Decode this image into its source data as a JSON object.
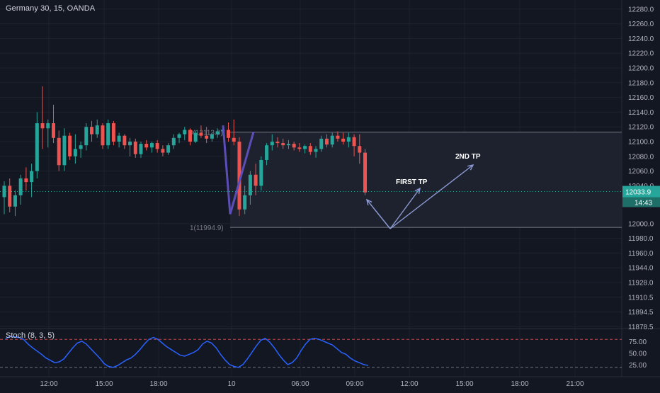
{
  "header": {
    "symbol_label": "Germany 30, 15, OANDA"
  },
  "colors": {
    "background": "#131722",
    "grid": "#1e222d",
    "up_candle": "#26a69a",
    "down_candle": "#ef5350",
    "axis_text": "#b2b5be",
    "price_line": "#26a69a",
    "box_fill": "#1f2330",
    "box_border": "#787b86",
    "fib_line": "#5d4db8",
    "arrow": "#8c9bd4",
    "stoch_line": "#2962ff",
    "stoch_band": "#ef5350"
  },
  "chart_data": {
    "type": "candlestick",
    "y_axis_ticks": [
      "12280.0",
      "12260.0",
      "12240.0",
      "12220.0",
      "12200.0",
      "12180.0",
      "12160.0",
      "12140.0",
      "12120.0",
      "12100.0",
      "12080.0",
      "12060.0",
      "12040.0",
      "12000.0",
      "11980.0",
      "11960.0",
      "11944.0",
      "11928.0",
      "11910.5",
      "11894.5",
      "11878.5"
    ],
    "x_axis_ticks": [
      "12:00",
      "15:00",
      "18:00",
      "10",
      "06:00",
      "09:00",
      "12:00",
      "15:00",
      "18:00",
      "21:00"
    ],
    "current_price": "12033.9",
    "countdown": "14:43",
    "fib_labels": {
      "top": "0(12113.0)",
      "bottom": "1(11994.9)"
    },
    "annotations": {
      "first_tp": "FIRST TP",
      "second_tp": "2ND TP"
    },
    "range_box": {
      "top": 12113.0,
      "bottom": 11994.9
    },
    "candles": [
      {
        "o": 12028,
        "h": 12046,
        "l": 12010,
        "c": 12040
      },
      {
        "o": 12040,
        "h": 12050,
        "l": 12012,
        "c": 12018
      },
      {
        "o": 12018,
        "h": 12035,
        "l": 12008,
        "c": 12030
      },
      {
        "o": 12030,
        "h": 12055,
        "l": 12020,
        "c": 12050
      },
      {
        "o": 12050,
        "h": 12065,
        "l": 12035,
        "c": 12045
      },
      {
        "o": 12045,
        "h": 12070,
        "l": 12028,
        "c": 12060
      },
      {
        "o": 12060,
        "h": 12140,
        "l": 12050,
        "c": 12125
      },
      {
        "o": 12125,
        "h": 12175,
        "l": 12090,
        "c": 12118
      },
      {
        "o": 12118,
        "h": 12130,
        "l": 12092,
        "c": 12125
      },
      {
        "o": 12125,
        "h": 12150,
        "l": 12098,
        "c": 12105
      },
      {
        "o": 12105,
        "h": 12115,
        "l": 12060,
        "c": 12068
      },
      {
        "o": 12068,
        "h": 12118,
        "l": 12060,
        "c": 12108
      },
      {
        "o": 12108,
        "h": 12112,
        "l": 12075,
        "c": 12080
      },
      {
        "o": 12080,
        "h": 12110,
        "l": 12070,
        "c": 12090
      },
      {
        "o": 12090,
        "h": 12100,
        "l": 12078,
        "c": 12095
      },
      {
        "o": 12095,
        "h": 12125,
        "l": 12088,
        "c": 12120
      },
      {
        "o": 12120,
        "h": 12128,
        "l": 12100,
        "c": 12110
      },
      {
        "o": 12110,
        "h": 12130,
        "l": 12105,
        "c": 12122
      },
      {
        "o": 12122,
        "h": 12125,
        "l": 12090,
        "c": 12095
      },
      {
        "o": 12095,
        "h": 12130,
        "l": 12090,
        "c": 12125
      },
      {
        "o": 12125,
        "h": 12128,
        "l": 12095,
        "c": 12100
      },
      {
        "o": 12100,
        "h": 12112,
        "l": 12092,
        "c": 12108
      },
      {
        "o": 12108,
        "h": 12110,
        "l": 12090,
        "c": 12095
      },
      {
        "o": 12095,
        "h": 12105,
        "l": 12080,
        "c": 12100
      },
      {
        "o": 12100,
        "h": 12104,
        "l": 12078,
        "c": 12083
      },
      {
        "o": 12083,
        "h": 12100,
        "l": 12078,
        "c": 12097
      },
      {
        "o": 12097,
        "h": 12102,
        "l": 12088,
        "c": 12092
      },
      {
        "o": 12092,
        "h": 12100,
        "l": 12085,
        "c": 12098
      },
      {
        "o": 12098,
        "h": 12102,
        "l": 12085,
        "c": 12090
      },
      {
        "o": 12090,
        "h": 12095,
        "l": 12080,
        "c": 12085
      },
      {
        "o": 12085,
        "h": 12098,
        "l": 12082,
        "c": 12095
      },
      {
        "o": 12095,
        "h": 12110,
        "l": 12090,
        "c": 12105
      },
      {
        "o": 12105,
        "h": 12112,
        "l": 12098,
        "c": 12110
      },
      {
        "o": 12110,
        "h": 12120,
        "l": 12102,
        "c": 12116
      },
      {
        "o": 12116,
        "h": 12118,
        "l": 12095,
        "c": 12100
      },
      {
        "o": 12100,
        "h": 12115,
        "l": 12098,
        "c": 12112
      },
      {
        "o": 12112,
        "h": 12122,
        "l": 12105,
        "c": 12108
      },
      {
        "o": 12108,
        "h": 12120,
        "l": 12098,
        "c": 12104
      },
      {
        "o": 12104,
        "h": 12112,
        "l": 12100,
        "c": 12110
      },
      {
        "o": 12110,
        "h": 12118,
        "l": 12105,
        "c": 12114
      },
      {
        "o": 12114,
        "h": 12120,
        "l": 12108,
        "c": 12116
      },
      {
        "o": 12116,
        "h": 12126,
        "l": 12100,
        "c": 12105
      },
      {
        "o": 12105,
        "h": 12130,
        "l": 12095,
        "c": 12100
      },
      {
        "o": 12100,
        "h": 12106,
        "l": 12008,
        "c": 12015
      },
      {
        "o": 12015,
        "h": 12040,
        "l": 12010,
        "c": 12030
      },
      {
        "o": 12030,
        "h": 12060,
        "l": 12020,
        "c": 12055
      },
      {
        "o": 12055,
        "h": 12070,
        "l": 12030,
        "c": 12040
      },
      {
        "o": 12040,
        "h": 12080,
        "l": 12035,
        "c": 12075
      },
      {
        "o": 12075,
        "h": 12098,
        "l": 12068,
        "c": 12095
      },
      {
        "o": 12095,
        "h": 12110,
        "l": 12088,
        "c": 12100
      },
      {
        "o": 12100,
        "h": 12106,
        "l": 12092,
        "c": 12098
      },
      {
        "o": 12098,
        "h": 12104,
        "l": 12090,
        "c": 12095
      },
      {
        "o": 12095,
        "h": 12102,
        "l": 12090,
        "c": 12097
      },
      {
        "o": 12097,
        "h": 12100,
        "l": 12088,
        "c": 12092
      },
      {
        "o": 12092,
        "h": 12098,
        "l": 12086,
        "c": 12090
      },
      {
        "o": 12090,
        "h": 12096,
        "l": 12084,
        "c": 12094
      },
      {
        "o": 12094,
        "h": 12098,
        "l": 12082,
        "c": 12086
      },
      {
        "o": 12086,
        "h": 12094,
        "l": 12078,
        "c": 12090
      },
      {
        "o": 12090,
        "h": 12108,
        "l": 12086,
        "c": 12104
      },
      {
        "o": 12104,
        "h": 12110,
        "l": 12092,
        "c": 12096
      },
      {
        "o": 12096,
        "h": 12112,
        "l": 12092,
        "c": 12108
      },
      {
        "o": 12108,
        "h": 12114,
        "l": 12100,
        "c": 12104
      },
      {
        "o": 12104,
        "h": 12112,
        "l": 12096,
        "c": 12100
      },
      {
        "o": 12100,
        "h": 12112,
        "l": 12092,
        "c": 12106
      },
      {
        "o": 12106,
        "h": 12110,
        "l": 12080,
        "c": 12094
      },
      {
        "o": 12094,
        "h": 12110,
        "l": 12070,
        "c": 12085
      },
      {
        "o": 12085,
        "h": 12090,
        "l": 12030,
        "c": 12033
      }
    ],
    "stoch": {
      "title": "Stoch (8, 3, 5)",
      "ticks": [
        "75.00",
        "50.00",
        "25.00"
      ],
      "upper_band": 80,
      "lower_band": 20,
      "values": [
        82,
        86,
        85,
        84,
        80,
        70,
        62,
        55,
        48,
        40,
        35,
        30,
        32,
        38,
        50,
        62,
        72,
        76,
        70,
        60,
        50,
        40,
        28,
        22,
        20,
        24,
        30,
        36,
        40,
        48,
        58,
        70,
        80,
        84,
        80,
        72,
        64,
        58,
        52,
        46,
        44,
        48,
        52,
        58,
        70,
        76,
        72,
        62,
        48,
        36,
        26,
        22,
        20,
        26,
        38,
        52,
        66,
        78,
        82,
        74,
        62,
        48,
        36,
        26,
        30,
        40,
        56,
        70,
        80,
        82,
        80,
        76,
        72,
        68,
        60,
        52,
        48,
        40,
        34,
        30,
        26,
        24
      ]
    }
  }
}
